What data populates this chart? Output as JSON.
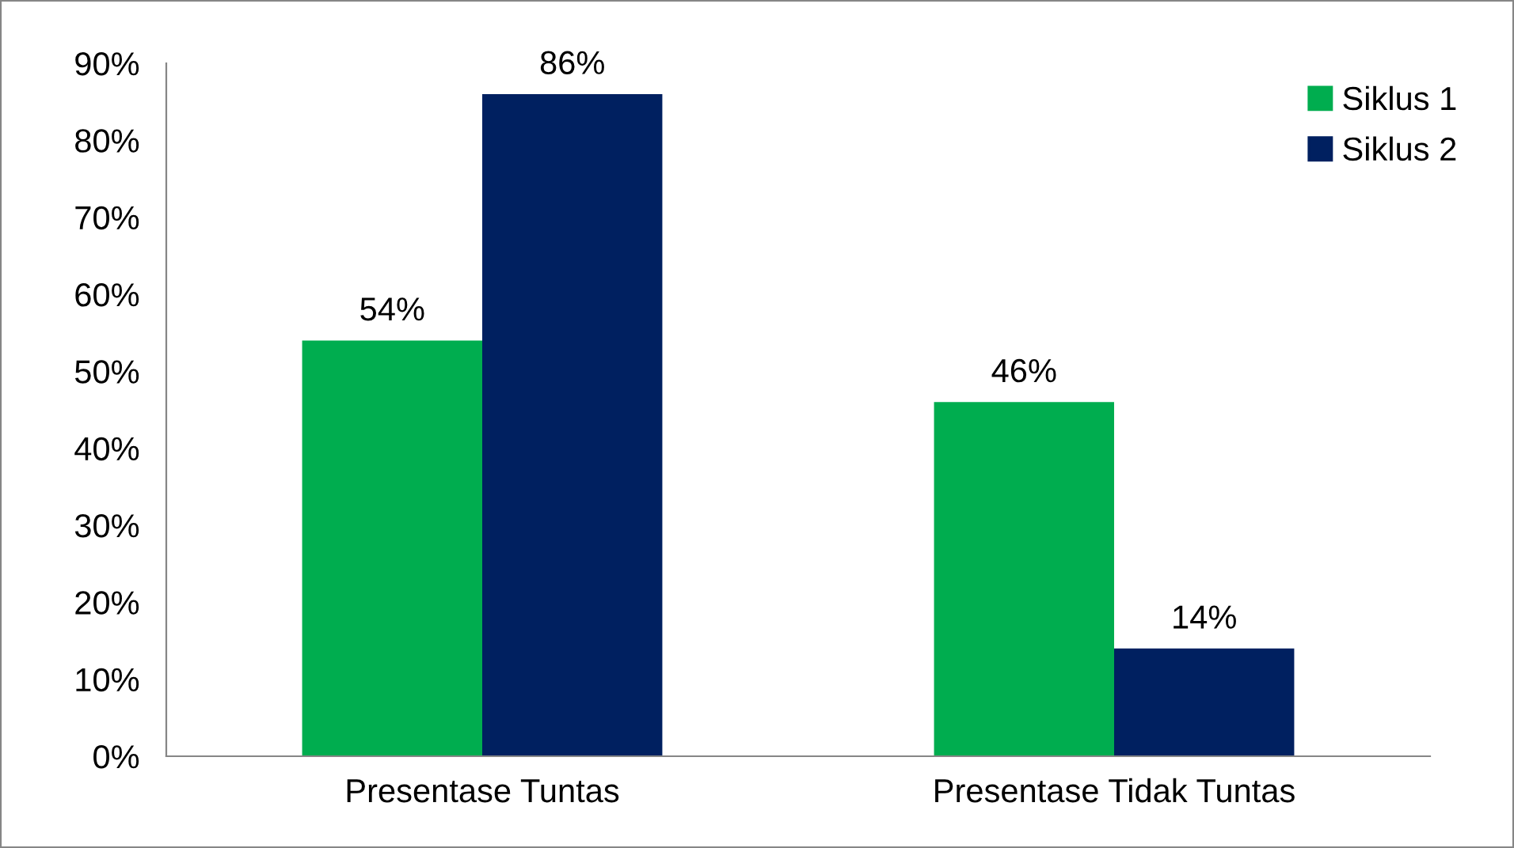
{
  "chart_data": {
    "type": "bar",
    "categories": [
      "Presentase Tuntas",
      "Presentase Tidak Tuntas"
    ],
    "series": [
      {
        "name": "Siklus 1",
        "color": "#00ad4f",
        "values": [
          54,
          46
        ],
        "value_labels": [
          "54%",
          "46%"
        ]
      },
      {
        "name": "Siklus 2",
        "color": "#002060",
        "values": [
          86,
          14
        ],
        "value_labels": [
          "86%",
          "14%"
        ]
      }
    ],
    "ylim": [
      0,
      90
    ],
    "yticks": [
      {
        "value": 0,
        "label": "0%"
      },
      {
        "value": 10,
        "label": "10%"
      },
      {
        "value": 20,
        "label": "20%"
      },
      {
        "value": 30,
        "label": "30%"
      },
      {
        "value": 40,
        "label": "40%"
      },
      {
        "value": 50,
        "label": "50%"
      },
      {
        "value": 60,
        "label": "60%"
      },
      {
        "value": 70,
        "label": "70%"
      },
      {
        "value": 80,
        "label": "80%"
      },
      {
        "value": 90,
        "label": "90%"
      }
    ],
    "grid": false,
    "legend": "top right"
  }
}
